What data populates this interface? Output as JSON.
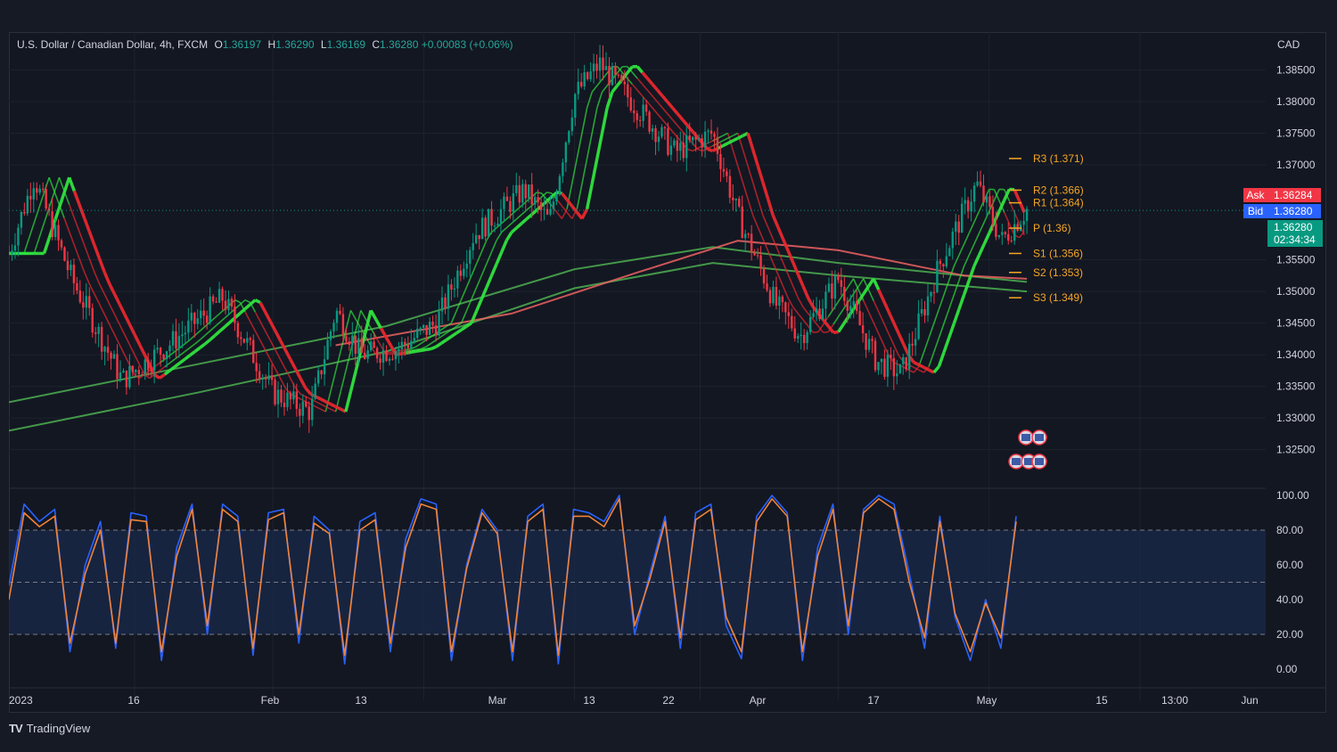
{
  "header": {
    "symbol": "U.S. Dollar / Canadian Dollar, 4h, FXCM",
    "open_label": "O",
    "open": "1.36197",
    "high_label": "H",
    "high": "1.36290",
    "low_label": "L",
    "low": "1.36169",
    "close_label": "C",
    "close": "1.36280",
    "change": "+0.00083 (+0.06%)"
  },
  "currency": "CAD",
  "quote": {
    "ask_label": "Ask",
    "ask": "1.36284",
    "bid_label": "Bid",
    "bid": "1.36280",
    "last": "1.36280",
    "countdown": "02:34:34"
  },
  "brand": {
    "name": "TradingView",
    "icon": "tradingview-logo-icon"
  },
  "colors": {
    "up": "#089981",
    "down": "#f23645",
    "ema_green": "#2fe33f",
    "ema_red": "#e8272e",
    "pivot": "#f5a623",
    "stoch_k": "#2962ff",
    "stoch_d": "#f0833a"
  },
  "chart_data": [
    {
      "type": "candlestick",
      "interval": "4h",
      "ylim": [
        1.322,
        1.389
      ],
      "y_ticks": [
        "1.38500",
        "1.38000",
        "1.37500",
        "1.37000",
        "1.35500",
        "1.35000",
        "1.34500",
        "1.34000",
        "1.33500",
        "1.33000",
        "1.32500"
      ],
      "x_ticks": [
        "2023",
        "16",
        "Feb",
        "13",
        "Mar",
        "13",
        "22",
        "Apr",
        "17",
        "May",
        "15",
        "13:00",
        "Jun"
      ],
      "price_path": [
        [
          0,
          1.356
        ],
        [
          0.02,
          1.368
        ],
        [
          0.05,
          1.352
        ],
        [
          0.09,
          1.336
        ],
        [
          0.13,
          1.342
        ],
        [
          0.17,
          1.349
        ],
        [
          0.21,
          1.334
        ],
        [
          0.24,
          1.331
        ],
        [
          0.26,
          1.347
        ],
        [
          0.28,
          1.34
        ],
        [
          0.31,
          1.341
        ],
        [
          0.34,
          1.345
        ],
        [
          0.37,
          1.359
        ],
        [
          0.41,
          1.366
        ],
        [
          0.43,
          1.361
        ],
        [
          0.45,
          1.381
        ],
        [
          0.47,
          1.386
        ],
        [
          0.5,
          1.379
        ],
        [
          0.53,
          1.372
        ],
        [
          0.56,
          1.375
        ],
        [
          0.58,
          1.362
        ],
        [
          0.61,
          1.348
        ],
        [
          0.63,
          1.343
        ],
        [
          0.66,
          1.352
        ],
        [
          0.69,
          1.339
        ],
        [
          0.71,
          1.337
        ],
        [
          0.74,
          1.354
        ],
        [
          0.77,
          1.367
        ],
        [
          0.79,
          1.358
        ],
        [
          0.81,
          1.363
        ]
      ],
      "moving_averages": [
        {
          "color": "green",
          "points": [
            [
              0,
              1.3325
            ],
            [
              0.15,
              1.3385
            ],
            [
              0.3,
              1.3445
            ],
            [
              0.45,
              1.3535
            ],
            [
              0.56,
              1.357
            ],
            [
              0.66,
              1.3545
            ],
            [
              0.81,
              1.3515
            ]
          ]
        },
        {
          "color": "green",
          "points": [
            [
              0,
              1.328
            ],
            [
              0.15,
              1.334
            ],
            [
              0.3,
              1.3405
            ],
            [
              0.45,
              1.3505
            ],
            [
              0.56,
              1.3545
            ],
            [
              0.66,
              1.3525
            ],
            [
              0.81,
              1.35
            ]
          ]
        },
        {
          "color": "red",
          "points": [
            [
              0.26,
              1.3415
            ],
            [
              0.4,
              1.3465
            ],
            [
              0.5,
              1.353
            ],
            [
              0.58,
              1.358
            ],
            [
              0.66,
              1.3565
            ],
            [
              0.76,
              1.3525
            ],
            [
              0.81,
              1.352
            ]
          ]
        }
      ],
      "pivots": [
        {
          "label": "R3 (1.371)",
          "value": 1.371
        },
        {
          "label": "R2 (1.366)",
          "value": 1.366
        },
        {
          "label": "R1 (1.364)",
          "value": 1.364
        },
        {
          "label": "P (1.36)",
          "value": 1.36
        },
        {
          "label": "S1 (1.356)",
          "value": 1.356
        },
        {
          "label": "S2 (1.353)",
          "value": 1.353
        },
        {
          "label": "S3 (1.349)",
          "value": 1.349
        }
      ]
    },
    {
      "type": "line",
      "indicator": "stochastic",
      "ylim": [
        0,
        100
      ],
      "y_ticks": [
        "100.00",
        "80.00",
        "60.00",
        "40.00",
        "20.00",
        "0.00"
      ],
      "bands": [
        20,
        50,
        80
      ],
      "series": [
        {
          "values": [
            48,
            95,
            85,
            92,
            10,
            60,
            85,
            12,
            90,
            88,
            5,
            70,
            95,
            20,
            95,
            88,
            8,
            90,
            92,
            15,
            88,
            80,
            3,
            85,
            90,
            10,
            75,
            98,
            95,
            5,
            60,
            92,
            80,
            5,
            88,
            95,
            3,
            92,
            90,
            85,
            100,
            20,
            55,
            88,
            12,
            90,
            95,
            25,
            6,
            88,
            100,
            90,
            5,
            70,
            95,
            20,
            92,
            100,
            95,
            55,
            12,
            88,
            30,
            5,
            40,
            12,
            88
          ]
        },
        {
          "values": [
            40,
            90,
            82,
            88,
            15,
            55,
            80,
            15,
            86,
            85,
            10,
            65,
            92,
            25,
            92,
            85,
            12,
            86,
            90,
            20,
            84,
            78,
            8,
            80,
            86,
            15,
            70,
            95,
            92,
            10,
            58,
            90,
            78,
            10,
            85,
            92,
            8,
            88,
            88,
            82,
            98,
            25,
            52,
            85,
            18,
            86,
            92,
            30,
            10,
            85,
            98,
            88,
            10,
            65,
            92,
            25,
            90,
            98,
            92,
            50,
            18,
            85,
            32,
            10,
            38,
            18,
            85
          ]
        }
      ]
    }
  ]
}
